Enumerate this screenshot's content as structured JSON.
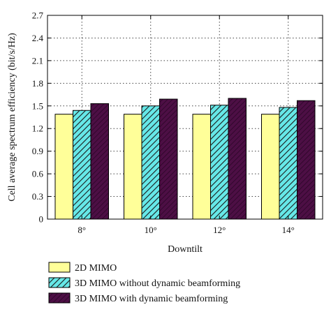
{
  "chart_data": {
    "type": "bar",
    "title": "",
    "xlabel": "Downtilt",
    "ylabel": "Cell average spectrum efficiency (bit/s/Hz)",
    "categories": [
      "8°",
      "10°",
      "12°",
      "14°"
    ],
    "ylim": [
      0,
      2.7
    ],
    "yticks": [
      "0",
      "0.3",
      "0.6",
      "0.9",
      "1.2",
      "1.5",
      "1.8",
      "2.1",
      "2.4",
      "2.7"
    ],
    "grid": true,
    "legend_position": "bottom",
    "series": [
      {
        "name": "2D MIMO",
        "values": [
          1.39,
          1.39,
          1.39,
          1.39
        ],
        "color": "#ffff99",
        "pattern": "none"
      },
      {
        "name": "3D MIMO without dynamic beamforming",
        "values": [
          1.44,
          1.5,
          1.51,
          1.48
        ],
        "color": "#66e8e8",
        "pattern": "hatch"
      },
      {
        "name": "3D MIMO with dynamic beamforming",
        "values": [
          1.53,
          1.59,
          1.6,
          1.57
        ],
        "color": "#4d0f45",
        "pattern": "hatch"
      }
    ]
  }
}
